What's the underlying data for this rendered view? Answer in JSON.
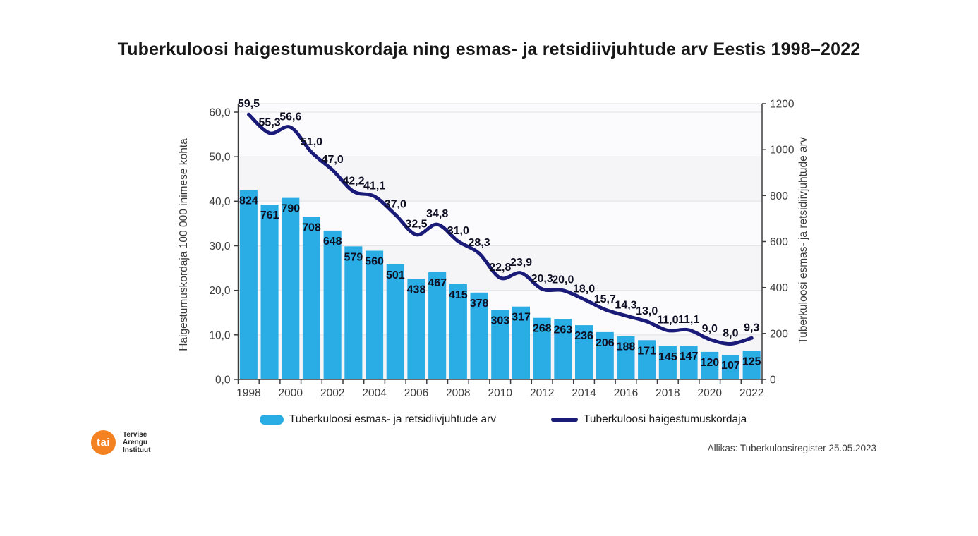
{
  "title": "Tuberkuloosi haigestumuskordaja ning esmas- ja retsidiivjuhtude arv Eestis 1998–2022",
  "chart_data": {
    "type": "combo-bar-line",
    "title": "Tuberkuloosi haigestumuskordaja ning esmas- ja retsidiivjuhtude arv Eestis 1998–2022",
    "years": [
      1998,
      1999,
      2000,
      2001,
      2002,
      2003,
      2004,
      2005,
      2006,
      2007,
      2008,
      2009,
      2010,
      2011,
      2012,
      2013,
      2014,
      2015,
      2016,
      2017,
      2018,
      2019,
      2020,
      2021,
      2022
    ],
    "x_tick_labels": [
      "1998",
      "2000",
      "2002",
      "2004",
      "2006",
      "2008",
      "2010",
      "2012",
      "2014",
      "2016",
      "2018",
      "2020",
      "2022"
    ],
    "series": [
      {
        "name": "Tuberkuloosi esmas- ja retsidiivjuhtude arv",
        "type": "bar",
        "axis": "right",
        "color": "#29ade4",
        "values": [
          824,
          761,
          790,
          708,
          648,
          579,
          560,
          501,
          438,
          467,
          415,
          378,
          303,
          317,
          268,
          263,
          236,
          206,
          188,
          171,
          145,
          147,
          120,
          107,
          125
        ],
        "value_labels": [
          "824",
          "761",
          "790",
          "708",
          "648",
          "579",
          "560",
          "501",
          "438",
          "467",
          "415",
          "378",
          "303",
          "317",
          "268",
          "263",
          "236",
          "206",
          "188",
          "171",
          "145",
          "147",
          "120",
          "107",
          "125"
        ]
      },
      {
        "name": "Tuberkuloosi haigestumuskordaja",
        "type": "line",
        "axis": "left",
        "color": "#1a1a78",
        "values": [
          59.5,
          55.3,
          56.6,
          51.0,
          47.0,
          42.2,
          41.1,
          37.0,
          32.5,
          34.8,
          31.0,
          28.3,
          22.8,
          23.9,
          20.3,
          20.0,
          18.0,
          15.7,
          14.3,
          13.0,
          11.0,
          11.1,
          9.0,
          8.0,
          9.3
        ],
        "value_labels": [
          "59,5",
          "55,3",
          "56,6",
          "51,0",
          "47,0",
          "42,2",
          "41,1",
          "37,0",
          "32,5",
          "34,8",
          "31,0",
          "28,3",
          "22,8",
          "23,9",
          "20,3",
          "20,0",
          "18,0",
          "15,7",
          "14,3",
          "13,0",
          "11,0",
          "11,1",
          "9,0",
          "8,0",
          "9,3"
        ]
      }
    ],
    "left_axis": {
      "title": "Haigestumuskordaja 100 000 inimese kohta",
      "min": 0,
      "max": 60,
      "tick_values": [
        0,
        10,
        20,
        30,
        40,
        50,
        60
      ],
      "tick_labels": [
        "0,0",
        "10,0",
        "20,0",
        "30,0",
        "40,0",
        "50,0",
        "60,0"
      ]
    },
    "right_axis": {
      "title": "Tuberkuloosi esmas- ja retsidiivjuhtude arv",
      "min": 0,
      "max": 1200,
      "tick_values": [
        0,
        200,
        400,
        600,
        800,
        1000,
        1200
      ],
      "tick_labels": [
        "0",
        "200",
        "400",
        "600",
        "800",
        "1000",
        "1200"
      ]
    },
    "grid": "horizontal",
    "legend_position": "bottom"
  },
  "legend": {
    "items": [
      {
        "label": "Tuberkuloosi esmas- ja retsidiivjuhtude arv",
        "color": "#29ade4",
        "shape": "bar-swatch"
      },
      {
        "label": "Tuberkuloosi haigestumuskordaja",
        "color": "#1a1a78",
        "shape": "line-swatch"
      }
    ]
  },
  "footer": {
    "logo_text": "tai",
    "logo_lines": [
      "Tervise",
      "Arengu",
      "Instituut"
    ],
    "source": "Allikas: Tuberkuloosiregister 25.05.2023"
  },
  "colors": {
    "bar": "#29ade4",
    "line": "#1a1a78",
    "data_label": "#0e0e22",
    "axis_text": "#3d3d3d",
    "grid": "#e3e3e8",
    "plot_bg": "#fbfbfd",
    "plot_band": "#f5f5f8",
    "logo_orange": "#f58220"
  }
}
